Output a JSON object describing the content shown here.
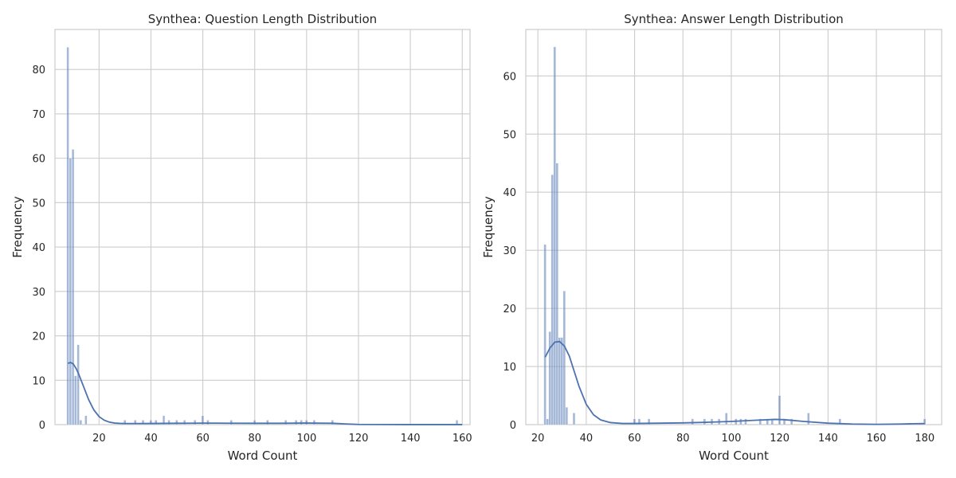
{
  "chart_data": [
    {
      "type": "bar",
      "title": "Synthea: Question Length Distribution",
      "xlabel": "Word Count",
      "ylabel": "Frequency",
      "xlim": [
        3,
        163
      ],
      "ylim": [
        0,
        89
      ],
      "xticks": [
        "20",
        "40",
        "60",
        "80",
        "100",
        "120",
        "140",
        "160"
      ],
      "yticks": [
        "0",
        "10",
        "20",
        "30",
        "40",
        "50",
        "60",
        "70",
        "80"
      ],
      "grid": true,
      "bar_color": "#4c72b0",
      "kde_color": "#4c72b0",
      "bin_width": 1,
      "bins_x": [
        8,
        9,
        10,
        11,
        12,
        13,
        15,
        30,
        34,
        37,
        40,
        42,
        45,
        47,
        50,
        53,
        57,
        60,
        62,
        71,
        80,
        85,
        92,
        96,
        98,
        100,
        103,
        110,
        158
      ],
      "bins_y": [
        85,
        60,
        62,
        11,
        18,
        1,
        2,
        1,
        1,
        1,
        1,
        1,
        2,
        1,
        1,
        1,
        1,
        2,
        1,
        1,
        1,
        1,
        1,
        1,
        1,
        1,
        1,
        1,
        1
      ],
      "kde_x": [
        8,
        9,
        10,
        11,
        12,
        14,
        16,
        18,
        20,
        22,
        24,
        26,
        28,
        30,
        35,
        40,
        45,
        50,
        55,
        60,
        65,
        70,
        80,
        90,
        100,
        110,
        115,
        120,
        130,
        140,
        160
      ],
      "kde_y": [
        13.8,
        14,
        13.7,
        12.8,
        11.6,
        8.6,
        5.6,
        3.3,
        1.8,
        1.0,
        0.55,
        0.35,
        0.28,
        0.25,
        0.25,
        0.26,
        0.28,
        0.3,
        0.32,
        0.33,
        0.33,
        0.32,
        0.3,
        0.3,
        0.35,
        0.3,
        0.15,
        0.05,
        0.02,
        0.01,
        0.01
      ]
    },
    {
      "type": "bar",
      "title": "Synthea: Answer Length Distribution",
      "xlabel": "Word Count",
      "ylabel": "Frequency",
      "xlim": [
        15,
        187
      ],
      "ylim": [
        0,
        68
      ],
      "xticks": [
        "20",
        "40",
        "60",
        "80",
        "100",
        "120",
        "140",
        "160",
        "180"
      ],
      "yticks": [
        "0",
        "10",
        "20",
        "30",
        "40",
        "50",
        "60"
      ],
      "grid": true,
      "bar_color": "#4c72b0",
      "kde_color": "#4c72b0",
      "bin_width": 1.1,
      "bins_x": [
        23,
        24,
        25,
        26,
        27,
        28,
        29,
        30,
        31,
        32,
        35,
        60,
        62,
        66,
        84,
        89,
        92,
        95,
        98,
        102,
        104,
        106,
        112,
        115,
        117,
        120,
        122,
        125,
        132,
        145,
        180
      ],
      "bins_y": [
        31,
        1,
        16,
        43,
        65,
        45,
        15,
        15,
        23,
        3,
        2,
        1,
        1,
        1,
        1,
        1,
        1,
        1,
        2,
        1,
        1,
        1,
        1,
        1,
        1,
        5,
        1,
        1,
        2,
        1,
        1
      ],
      "kde_x": [
        23,
        25,
        27,
        29,
        31,
        33,
        35,
        37,
        40,
        43,
        46,
        50,
        55,
        60,
        70,
        80,
        90,
        100,
        110,
        118,
        122,
        130,
        140,
        150,
        160,
        170,
        175,
        180
      ],
      "kde_y": [
        11.6,
        13.2,
        14.2,
        14.3,
        13.5,
        11.8,
        9.2,
        6.6,
        3.5,
        1.7,
        0.8,
        0.35,
        0.2,
        0.2,
        0.25,
        0.3,
        0.4,
        0.55,
        0.75,
        0.9,
        0.85,
        0.55,
        0.25,
        0.1,
        0.05,
        0.1,
        0.15,
        0.18
      ]
    }
  ]
}
